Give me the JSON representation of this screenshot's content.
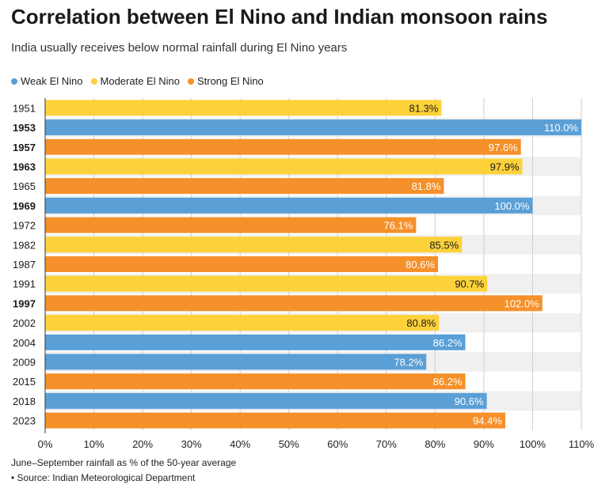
{
  "colors": {
    "weak": "#5a9fd6",
    "moderate": "#fdd13a",
    "strong": "#f5902a",
    "band": "#f0f0f0",
    "grid": "#cfcfcf",
    "axis": "#333333"
  },
  "chart_data": {
    "type": "bar",
    "orientation": "horizontal",
    "title": "Correlation between El Nino and Indian monsoon rains",
    "subtitle": "India usually receives below normal rainfall during El Nino years",
    "legend": [
      {
        "key": "weak",
        "label": "Weak El Nino"
      },
      {
        "key": "moderate",
        "label": "Moderate El Nino"
      },
      {
        "key": "strong",
        "label": "Strong El Nino"
      }
    ],
    "legend_position": "top-left",
    "categories": [
      "1951",
      "1953",
      "1957",
      "1963",
      "1965",
      "1969",
      "1972",
      "1982",
      "1987",
      "1991",
      "1997",
      "2002",
      "2004",
      "2009",
      "2015",
      "2018",
      "2023"
    ],
    "values": [
      81.3,
      110.0,
      97.6,
      97.9,
      81.8,
      100.0,
      76.1,
      85.5,
      80.6,
      90.7,
      102.0,
      80.8,
      86.2,
      78.2,
      86.2,
      90.6,
      94.4
    ],
    "value_labels": [
      "81.3%",
      "110.0%",
      "97.6%",
      "97.9%",
      "81.8%",
      "100.0%",
      "76.1%",
      "85.5%",
      "80.6%",
      "90.7%",
      "102.0%",
      "80.8%",
      "86.2%",
      "78.2%",
      "86.2%",
      "90.6%",
      "94.4%"
    ],
    "strength": [
      "moderate",
      "weak",
      "strong",
      "moderate",
      "strong",
      "weak",
      "strong",
      "moderate",
      "strong",
      "moderate",
      "strong",
      "moderate",
      "weak",
      "weak",
      "strong",
      "weak",
      "strong"
    ],
    "bold_years": [
      "1953",
      "1957",
      "1963",
      "1969",
      "1997"
    ],
    "xlim": [
      0,
      110
    ],
    "xticks": [
      0,
      10,
      20,
      30,
      40,
      50,
      60,
      70,
      80,
      90,
      100,
      110
    ],
    "xtick_labels": [
      "0%",
      "10%",
      "20%",
      "30%",
      "40%",
      "50%",
      "60%",
      "70%",
      "80%",
      "90%",
      "100%",
      "110%"
    ],
    "grid": true
  },
  "footer": {
    "note": "June–September rainfall as % of the 50-year average",
    "source": "• Source: Indian Meteorological Department"
  }
}
